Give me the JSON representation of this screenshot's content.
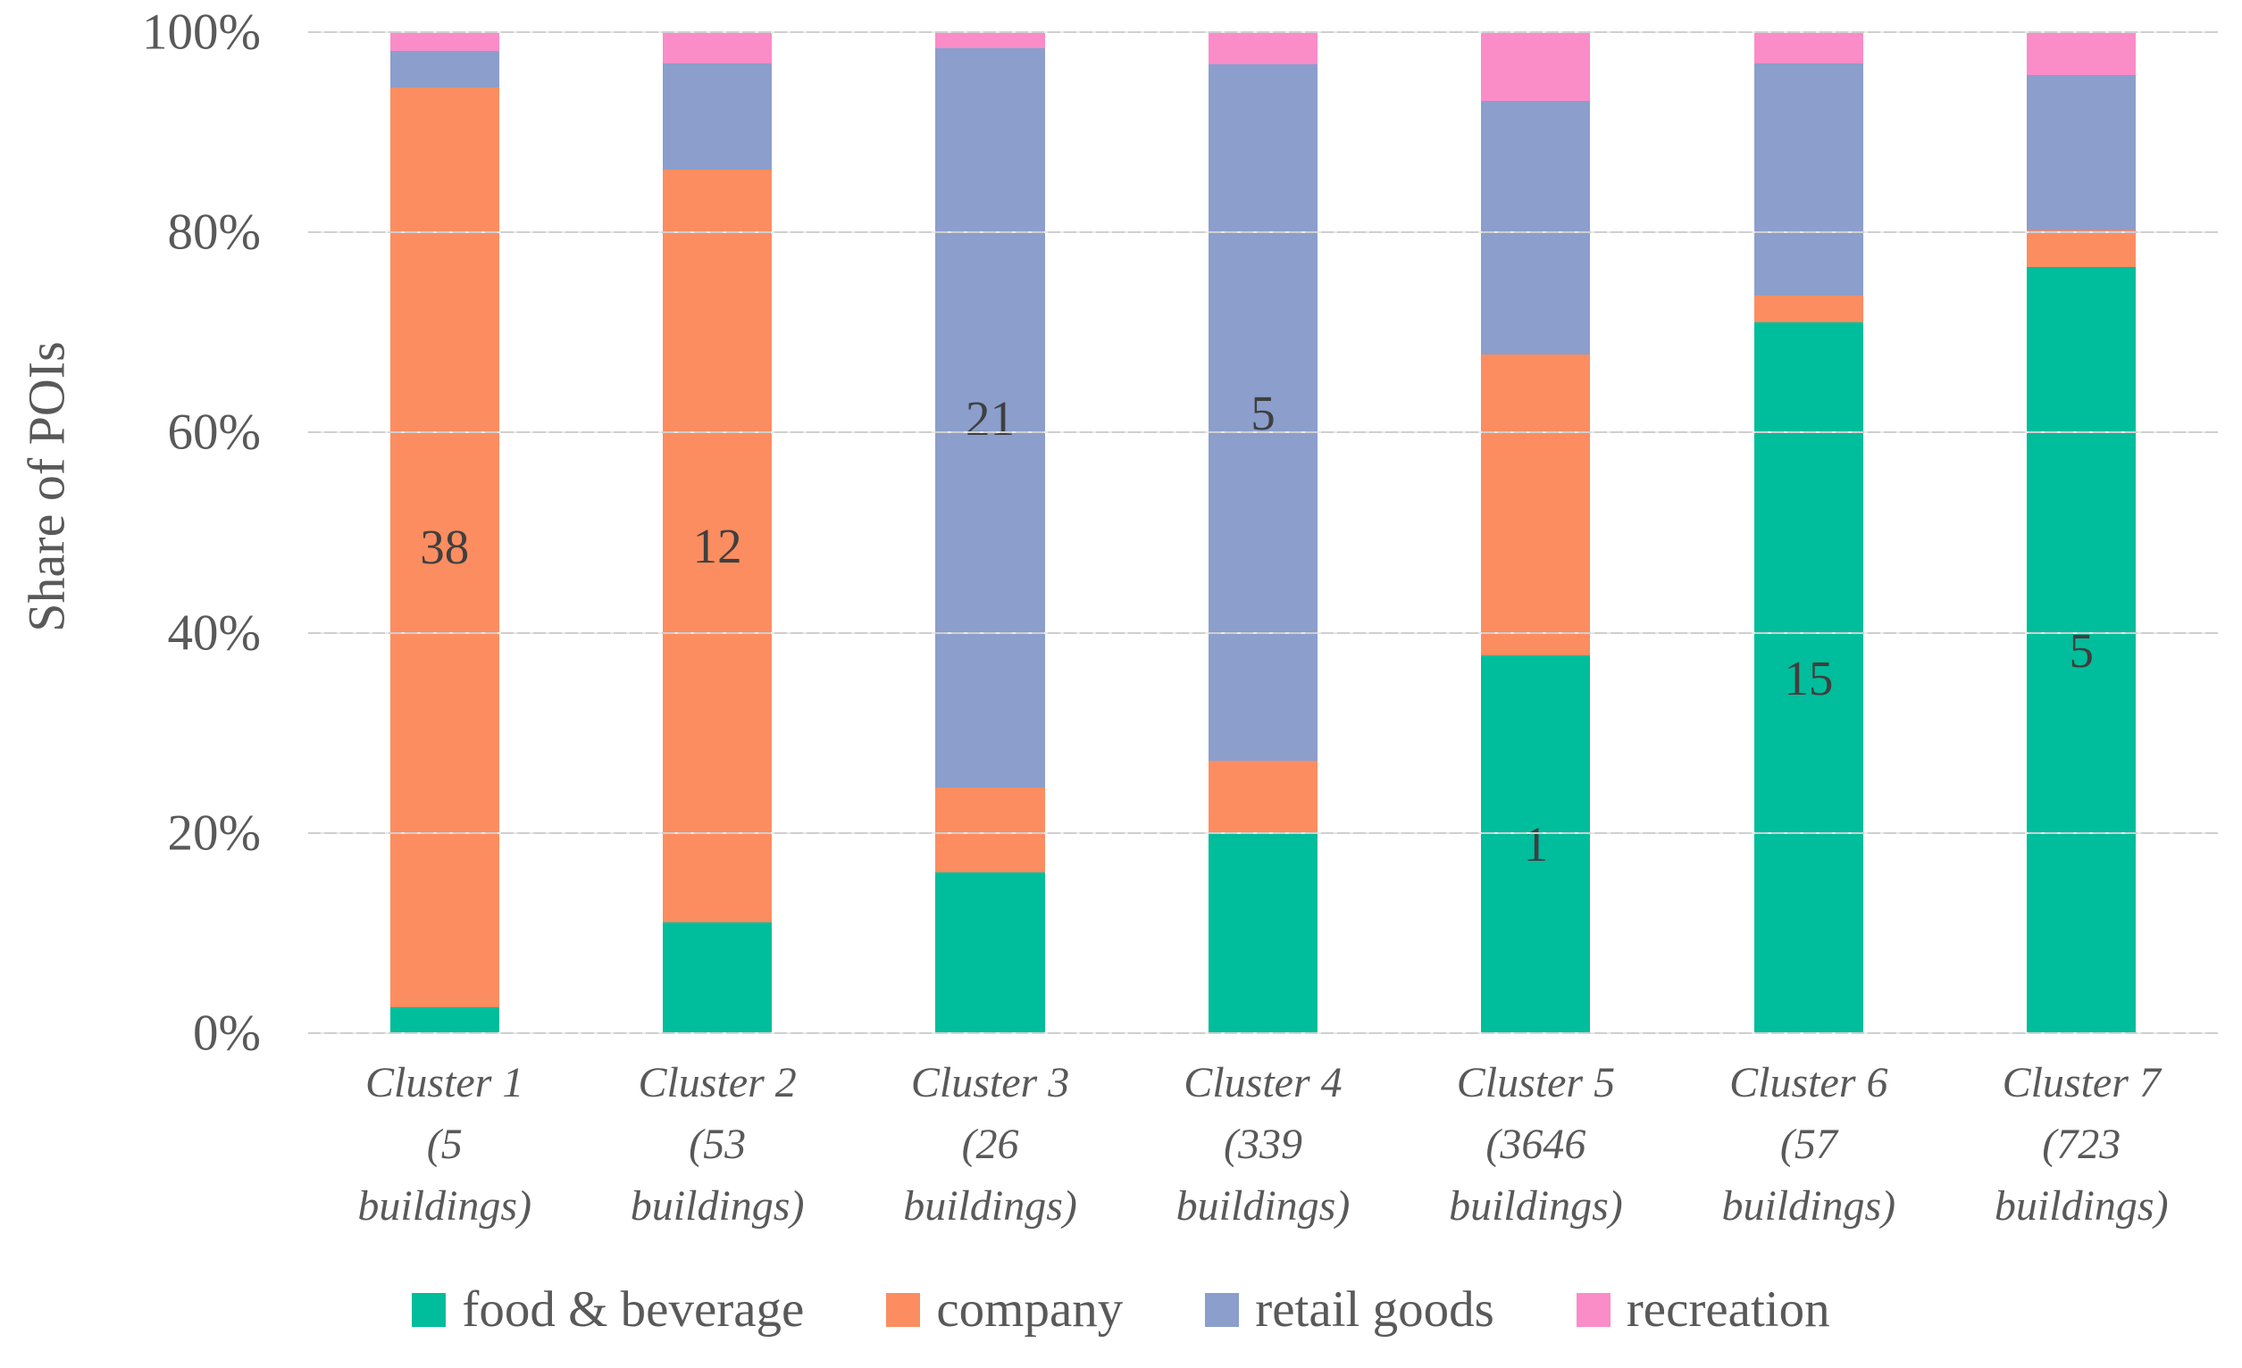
{
  "chart_data": {
    "type": "bar",
    "subtype": "stacked-percent-column",
    "title": "",
    "xlabel": "",
    "ylabel": "Share of POIs",
    "ylim": [
      0,
      100
    ],
    "ytick_labels_top_down": [
      "100%",
      "80%",
      "60%",
      "40%",
      "20%",
      "0%"
    ],
    "grid": "horizontal-light-gray",
    "legend_position": "bottom",
    "segment_order_bottom_up": [
      "food",
      "company",
      "retail",
      "recreation"
    ],
    "series": {
      "food": {
        "label": "food & beverage",
        "color": "#00BD9B"
      },
      "company": {
        "label": "company",
        "color": "#FC8D60"
      },
      "retail": {
        "label": "retail goods",
        "color": "#8B9ECC"
      },
      "recreation": {
        "label": "recreation",
        "color": "#FA8CC8"
      }
    },
    "clusters": [
      {
        "label_lines": [
          "Cluster 1",
          "(5",
          "buildings)"
        ],
        "values": {
          "food": 2.6,
          "company": 91.9,
          "retail": 3.6,
          "recreation": 1.9
        },
        "annotation": {
          "text": "38",
          "segment": "company"
        }
      },
      {
        "label_lines": [
          "Cluster 2",
          "(53",
          "buildings)"
        ],
        "values": {
          "food": 11.1,
          "company": 75.2,
          "retail": 10.6,
          "recreation": 3.1
        },
        "annotation": {
          "text": "12",
          "segment": "company"
        }
      },
      {
        "label_lines": [
          "Cluster 3",
          "(26",
          "buildings)"
        ],
        "values": {
          "food": 16.1,
          "company": 8.4,
          "retail": 73.9,
          "recreation": 1.6
        },
        "annotation": {
          "text": "21",
          "segment": "retail"
        }
      },
      {
        "label_lines": [
          "Cluster 4",
          "(339",
          "buildings)"
        ],
        "values": {
          "food": 20.0,
          "company": 7.2,
          "retail": 69.6,
          "recreation": 3.2
        },
        "annotation": {
          "text": "5",
          "segment": "retail"
        }
      },
      {
        "label_lines": [
          "Cluster 5",
          "(3646",
          "buildings)"
        ],
        "values": {
          "food": 37.7,
          "company": 30.1,
          "retail": 25.3,
          "recreation": 6.9
        },
        "annotation": {
          "text": "1",
          "segment": "food"
        }
      },
      {
        "label_lines": [
          "Cluster 6",
          "(57",
          "buildings)"
        ],
        "values": {
          "food": 71.0,
          "company": 2.7,
          "retail": 23.2,
          "recreation": 3.1
        },
        "annotation": {
          "text": "15",
          "segment": "food"
        }
      },
      {
        "label_lines": [
          "Cluster 7",
          "(723",
          "buildings)"
        ],
        "values": {
          "food": 76.5,
          "company": 3.7,
          "retail": 15.5,
          "recreation": 4.3
        },
        "annotation": {
          "text": "5",
          "segment": "food"
        }
      }
    ]
  }
}
